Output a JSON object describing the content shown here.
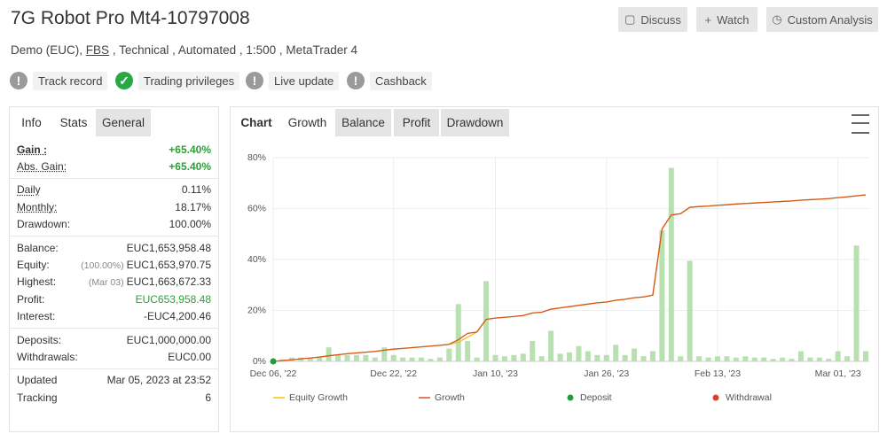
{
  "header": {
    "title": "7G Robot Pro Mt4-10797008",
    "subtitle": [
      "Demo (EUC),",
      "FBS",
      ", Technical , Automated , 1:500 , MetaTrader 4"
    ]
  },
  "buttons": [
    "Discuss",
    "Watch",
    "Custom Analysis"
  ],
  "badges": [
    {
      "label": "Track record",
      "status": "warning"
    },
    {
      "label": "Trading privileges",
      "status": "ok"
    },
    {
      "label": "Live update",
      "status": "warning"
    },
    {
      "label": "Cashback",
      "status": "warning"
    }
  ],
  "stats_panel": {
    "tabs": [
      "Info",
      "Stats",
      "General"
    ],
    "groups": [
      [
        {
          "label": "Gain :",
          "value": "+65.40%",
          "value_color": "#2e9e3a",
          "underline": true,
          "bold": true
        },
        {
          "label": "Abs. Gain:",
          "value": "+65.40%",
          "value_color": "#2e9e3a",
          "underline": true
        }
      ],
      [
        {
          "label": "Daily",
          "value": "0.11%",
          "underline": true
        },
        {
          "label": "Monthly:",
          "value": "18.17%",
          "underline": true
        },
        {
          "label": "Drawdown:",
          "value": "100.00%"
        }
      ],
      [
        {
          "label": "Balance:",
          "value": "EUC1,653,958.48"
        },
        {
          "label": "Equity:",
          "note": "(100.00%)",
          "value": "EUC1,653,970.75"
        },
        {
          "label": "Highest:",
          "note": "(Mar 03)",
          "value": "EUC1,663,672.33"
        },
        {
          "label": "Profit:",
          "value": "EUC653,958.48",
          "value_color": "#2e9e3a"
        },
        {
          "label": "Interest:",
          "value": "-EUC4,200.46"
        }
      ],
      [
        {
          "label": "Deposits:",
          "value": "EUC1,000,000.00"
        },
        {
          "label": "Withdrawals:",
          "value": "EUC0.00"
        }
      ],
      [
        {
          "label": "Updated",
          "value": "Mar 05, 2023 at 23:52"
        },
        {
          "label": "Tracking",
          "value": "6"
        }
      ]
    ]
  },
  "chart_panel": {
    "tabs": [
      "Chart",
      "Growth",
      "Balance",
      "Profit",
      "Drawdown"
    ],
    "active": 1
  },
  "chart_data": {
    "type": "line",
    "categories": [
      "Dec 06, '22",
      null,
      null,
      null,
      null,
      null,
      null,
      null,
      null,
      null,
      null,
      null,
      null,
      "Dec 22, '22",
      null,
      null,
      null,
      null,
      null,
      null,
      null,
      null,
      null,
      null,
      "Jan 10, '23",
      null,
      null,
      null,
      null,
      null,
      null,
      null,
      null,
      null,
      null,
      null,
      "Jan 26, '23",
      null,
      null,
      null,
      null,
      null,
      null,
      null,
      null,
      null,
      null,
      null,
      "Feb 13, '23",
      null,
      null,
      null,
      null,
      null,
      null,
      null,
      null,
      null,
      null,
      null,
      null,
      "Mar 01, '23",
      null,
      null,
      null
    ],
    "bars": {
      "color": "#b8e0b0",
      "values": [
        0.5,
        0.8,
        1.5,
        1.5,
        1.2,
        1.8,
        5.5,
        2.5,
        2.5,
        2.5,
        2.5,
        1.5,
        5.5,
        2.5,
        1.5,
        1.5,
        1.5,
        1,
        1.5,
        5,
        22.5,
        8,
        1.5,
        31.5,
        2.5,
        2,
        2.5,
        3,
        8,
        2,
        12,
        3,
        3.5,
        6,
        4,
        2.5,
        2.5,
        6.5,
        2.5,
        5,
        2,
        4,
        51.5,
        76,
        2,
        39.5,
        2,
        1.5,
        2,
        2,
        1.5,
        2,
        1.5,
        1.5,
        1,
        1.5,
        1,
        4,
        1.5,
        1.5,
        1,
        4,
        2,
        45.5,
        4
      ]
    },
    "series": [
      {
        "name": "Equity Growth",
        "type": "line",
        "color": "#f2c31a",
        "values": [
          0,
          0.3,
          0.6,
          1,
          1.3,
          1.7,
          2.2,
          2.6,
          3,
          3.3,
          3.6,
          3.9,
          4.4,
          4.8,
          5.1,
          5.4,
          5.7,
          6,
          6.3,
          6.7,
          7.5,
          9.5,
          11.5,
          16.5,
          17,
          17.3,
          17.6,
          18,
          19,
          19.3,
          20.5,
          21,
          21.5,
          22,
          22.5,
          23,
          23.3,
          24,
          24.4,
          25,
          25.3,
          26,
          52,
          57.5,
          58,
          60.5,
          60.8,
          61,
          61.3,
          61.5,
          61.8,
          62,
          62.2,
          62.4,
          62.6,
          62.8,
          63,
          63.3,
          63.5,
          63.7,
          63.9,
          64.3,
          64.6,
          65,
          65.4
        ]
      },
      {
        "name": "Growth",
        "type": "line",
        "color": "#d4561f",
        "values": [
          0,
          0.3,
          0.6,
          1,
          1.3,
          1.7,
          2.2,
          2.6,
          3,
          3.3,
          3.6,
          3.9,
          4.4,
          4.8,
          5.1,
          5.4,
          5.7,
          6,
          6.3,
          6.7,
          8.5,
          11,
          11.5,
          16.5,
          17,
          17.3,
          17.6,
          18,
          19,
          19.3,
          20.5,
          21,
          21.5,
          22,
          22.5,
          23,
          23.3,
          24,
          24.4,
          25,
          25.3,
          26,
          52,
          57.5,
          58,
          60.5,
          60.8,
          61,
          61.3,
          61.5,
          61.8,
          62,
          62.2,
          62.4,
          62.6,
          62.8,
          63,
          63.3,
          63.5,
          63.7,
          63.9,
          64.3,
          64.6,
          65,
          65.4
        ]
      },
      {
        "name": "Deposit",
        "type": "marker",
        "color": "#1e9e3a",
        "values": [
          0,
          null,
          null,
          null,
          null,
          null,
          null,
          null,
          null,
          null,
          null,
          null,
          null,
          null,
          null,
          null,
          null,
          null,
          null,
          null,
          null,
          null,
          null,
          null,
          null,
          null,
          null,
          null,
          null,
          null,
          null,
          null,
          null,
          null,
          null,
          null,
          null,
          null,
          null,
          null,
          null,
          null,
          null,
          null,
          null,
          null,
          null,
          null,
          null,
          null,
          null,
          null,
          null,
          null,
          null,
          null,
          null,
          null,
          null,
          null,
          null,
          null,
          null,
          null,
          null
        ]
      },
      {
        "name": "Withdrawal",
        "type": "marker",
        "color": "#d9412b",
        "values": [
          null,
          null,
          null,
          null,
          null,
          null,
          null,
          null,
          null,
          null,
          null,
          null,
          null,
          null,
          null,
          null,
          null,
          null,
          null,
          null,
          null,
          null,
          null,
          null,
          null,
          null,
          null,
          null,
          null,
          null,
          null,
          null,
          null,
          null,
          null,
          null,
          null,
          null,
          null,
          null,
          null,
          null,
          null,
          null,
          null,
          null,
          null,
          null,
          null,
          null,
          null,
          null,
          null,
          null,
          null,
          null,
          null,
          null,
          null,
          null,
          null,
          null,
          null,
          null,
          null
        ]
      }
    ],
    "ylim": [
      0,
      80
    ],
    "yticks": [
      {
        "value": 0,
        "label": "0%"
      },
      {
        "value": 20,
        "label": "20%"
      },
      {
        "value": 40,
        "label": "40%"
      },
      {
        "value": 60,
        "label": "60%"
      },
      {
        "value": 80,
        "label": "80%"
      }
    ],
    "grid": true
  }
}
